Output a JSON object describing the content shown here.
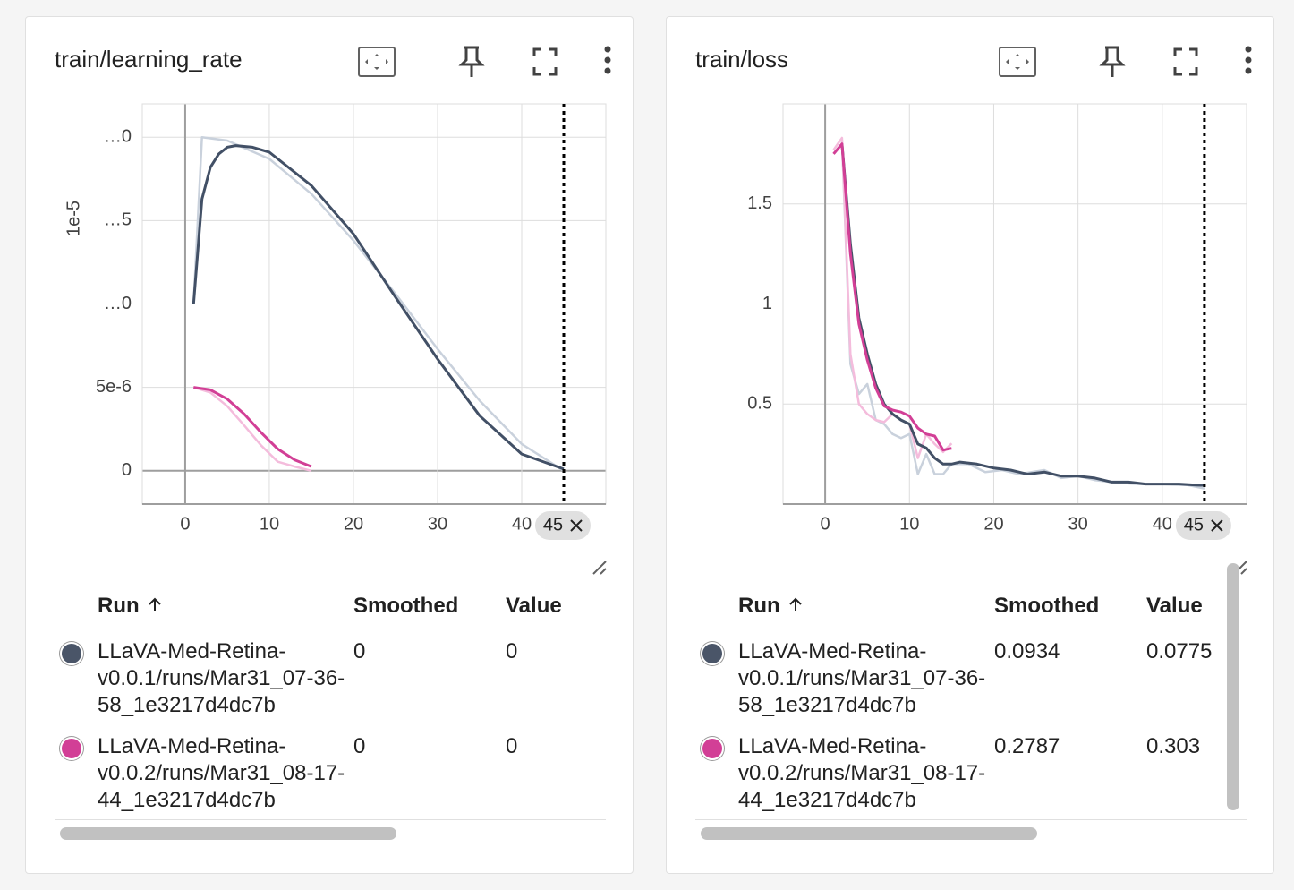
{
  "chart_data": [
    {
      "type": "line",
      "title": "train/learning_rate",
      "ylabel": "1e-5",
      "xlim": [
        -5.1,
        50
      ],
      "xticks": [
        0,
        10,
        20,
        30,
        40
      ],
      "ylim": [
        -2e-06,
        2.2e-05
      ],
      "yticks": [
        0,
        {
          "value": 5e-06,
          "label": "5e-6"
        },
        {
          "value": 1e-05,
          "label": "…0"
        },
        {
          "value": 1.5e-05,
          "label": "…5"
        },
        {
          "value": 2e-05,
          "label": "…0"
        }
      ],
      "grid": true,
      "hover_step": 45,
      "series": [
        {
          "color": "#c9d1dc",
          "x": [
            1,
            2,
            5,
            10,
            15,
            20,
            25,
            30,
            35,
            40,
            45
          ],
          "values": [
            1e-05,
            2e-05,
            1.98e-05,
            1.87e-05,
            1.66e-05,
            1.38e-05,
            1.06e-05,
            7.3e-06,
            4.2e-06,
            1.6e-06,
            0
          ]
        },
        {
          "color": "#f4bcdc",
          "x": [
            1,
            3,
            5,
            7,
            9,
            11,
            13,
            15
          ],
          "values": [
            5e-06,
            4.69e-06,
            3.87e-06,
            2.72e-06,
            1.53e-06,
            5.4e-07,
            2.5e-07,
            0
          ]
        },
        {
          "color": "#425066",
          "x": [
            1,
            2,
            3,
            4,
            5,
            6,
            8,
            10,
            15,
            20,
            25,
            30,
            35,
            40,
            45
          ],
          "values": [
            1e-05,
            1.63e-05,
            1.82e-05,
            1.9e-05,
            1.94e-05,
            1.95e-05,
            1.94e-05,
            1.91e-05,
            1.71e-05,
            1.42e-05,
            1.04e-05,
            6.7e-06,
            3.3e-06,
            1e-06,
            1e-07
          ]
        },
        {
          "color": "#d23f96",
          "x": [
            1,
            3,
            5,
            7,
            9,
            11,
            13,
            15
          ],
          "values": [
            5e-06,
            4.85e-06,
            4.3e-06,
            3.4e-06,
            2.3e-06,
            1.3e-06,
            6.5e-07,
            2.5e-07
          ]
        }
      ]
    },
    {
      "type": "line",
      "title": "train/loss",
      "xlim": [
        -5,
        50
      ],
      "xticks": [
        0,
        10,
        20,
        30,
        40
      ],
      "ylim": [
        0,
        2
      ],
      "yticks": [
        0.5,
        1,
        1.5
      ],
      "grid": true,
      "hover_step": 45,
      "series": [
        {
          "color": "#c9d1dc",
          "x": [
            2,
            3,
            4,
            5,
            6,
            7,
            8,
            9,
            10,
            11,
            12,
            13,
            14,
            15,
            17,
            19,
            21,
            23,
            26,
            28,
            30,
            32,
            34,
            37,
            40,
            43,
            45
          ],
          "values": [
            1.82,
            0.7,
            0.55,
            0.6,
            0.42,
            0.4,
            0.35,
            0.33,
            0.35,
            0.15,
            0.25,
            0.15,
            0.15,
            0.2,
            0.2,
            0.16,
            0.17,
            0.15,
            0.17,
            0.13,
            0.14,
            0.12,
            0.11,
            0.1,
            0.1,
            0.095,
            0.0775
          ]
        },
        {
          "color": "#f4bcdc",
          "x": [
            1,
            2,
            3,
            4,
            5,
            6,
            7,
            8,
            9,
            10,
            11,
            12,
            13,
            14,
            15
          ],
          "values": [
            1.77,
            1.83,
            0.75,
            0.5,
            0.45,
            0.42,
            0.41,
            0.45,
            0.42,
            0.4,
            0.23,
            0.35,
            0.3,
            0.26,
            0.303
          ]
        },
        {
          "color": "#425066",
          "x": [
            2,
            3,
            4,
            5,
            6,
            7,
            8,
            9,
            10,
            11,
            12,
            13,
            14,
            15,
            16,
            18,
            20,
            22,
            24,
            26,
            28,
            30,
            32,
            34,
            36,
            38,
            40,
            42,
            44,
            45
          ],
          "values": [
            1.8,
            1.3,
            0.93,
            0.75,
            0.6,
            0.5,
            0.45,
            0.42,
            0.4,
            0.3,
            0.28,
            0.23,
            0.2,
            0.2,
            0.21,
            0.2,
            0.18,
            0.17,
            0.15,
            0.16,
            0.14,
            0.14,
            0.13,
            0.11,
            0.11,
            0.1,
            0.1,
            0.1,
            0.095,
            0.0934
          ]
        },
        {
          "color": "#d23f96",
          "x": [
            1,
            2,
            3,
            4,
            5,
            6,
            7,
            8,
            9,
            10,
            11,
            12,
            13,
            14,
            15
          ],
          "values": [
            1.75,
            1.8,
            1.25,
            0.9,
            0.72,
            0.58,
            0.49,
            0.47,
            0.46,
            0.44,
            0.38,
            0.35,
            0.34,
            0.27,
            0.2787
          ]
        }
      ]
    }
  ],
  "run_tables": [
    {
      "headers": [
        "Run",
        "Smoothed",
        "Value"
      ],
      "rows": [
        {
          "color": "#4a5568",
          "name": "LLaVA-Med-Retina-v0.0.1/runs/Mar31_07-36-58_1e3217d4dc7b",
          "smoothed": 0,
          "value": 0
        },
        {
          "color": "#d23f96",
          "name": "LLaVA-Med-Retina-v0.0.2/runs/Mar31_08-17-44_1e3217d4dc7b",
          "smoothed": 0,
          "value": 0
        }
      ]
    },
    {
      "headers": [
        "Run",
        "Smoothed",
        "Value"
      ],
      "rows": [
        {
          "color": "#4a5568",
          "name": "LLaVA-Med-Retina-v0.0.1/runs/Mar31_07-36-58_1e3217d4dc7b",
          "smoothed": 0.0934,
          "value": 0.0775
        },
        {
          "color": "#d23f96",
          "name": "LLaVA-Med-Retina-v0.0.2/runs/Mar31_08-17-44_1e3217d4dc7b",
          "smoothed": 0.2787,
          "value": 0.303
        }
      ]
    }
  ]
}
